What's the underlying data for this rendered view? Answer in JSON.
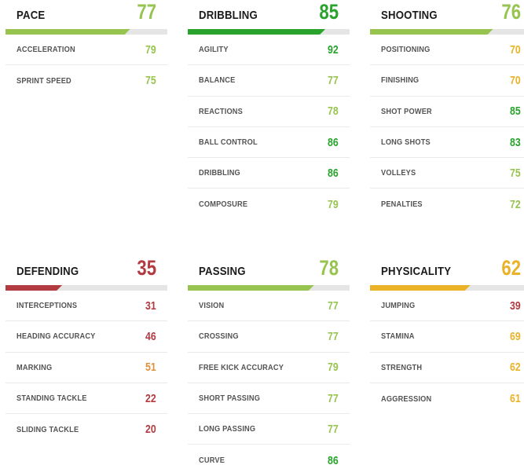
{
  "colors": {
    "green": "#29a32b",
    "light_green": "#96c44f",
    "gold": "#e9b227",
    "orange": "#df903b",
    "red": "#b23a41",
    "bar_track": "#e5e5e5"
  },
  "sections": [
    {
      "title": "PACE",
      "value": 77,
      "tier": "light_green",
      "stats": [
        {
          "label": "ACCELERATION",
          "value": 79,
          "tier": "light_green"
        },
        {
          "label": "SPRINT SPEED",
          "value": 75,
          "tier": "light_green"
        }
      ]
    },
    {
      "title": "DRIBBLING",
      "value": 85,
      "tier": "green",
      "stats": [
        {
          "label": "AGILITY",
          "value": 92,
          "tier": "green"
        },
        {
          "label": "BALANCE",
          "value": 77,
          "tier": "light_green"
        },
        {
          "label": "REACTIONS",
          "value": 78,
          "tier": "light_green"
        },
        {
          "label": "BALL CONTROL",
          "value": 86,
          "tier": "green"
        },
        {
          "label": "DRIBBLING",
          "value": 86,
          "tier": "green"
        },
        {
          "label": "COMPOSURE",
          "value": 79,
          "tier": "light_green"
        }
      ]
    },
    {
      "title": "SHOOTING",
      "value": 76,
      "tier": "light_green",
      "stats": [
        {
          "label": "POSITIONING",
          "value": 70,
          "tier": "gold"
        },
        {
          "label": "FINISHING",
          "value": 70,
          "tier": "gold"
        },
        {
          "label": "SHOT POWER",
          "value": 85,
          "tier": "green"
        },
        {
          "label": "LONG SHOTS",
          "value": 83,
          "tier": "green"
        },
        {
          "label": "VOLLEYS",
          "value": 75,
          "tier": "light_green"
        },
        {
          "label": "PENALTIES",
          "value": 72,
          "tier": "light_green"
        }
      ]
    },
    {
      "title": "DEFENDING",
      "value": 35,
      "tier": "red",
      "stats": [
        {
          "label": "INTERCEPTIONS",
          "value": 31,
          "tier": "red"
        },
        {
          "label": "HEADING ACCURACY",
          "value": 46,
          "tier": "red"
        },
        {
          "label": "MARKING",
          "value": 51,
          "tier": "orange"
        },
        {
          "label": "STANDING TACKLE",
          "value": 22,
          "tier": "red"
        },
        {
          "label": "SLIDING TACKLE",
          "value": 20,
          "tier": "red"
        }
      ]
    },
    {
      "title": "PASSING",
      "value": 78,
      "tier": "light_green",
      "stats": [
        {
          "label": "VISION",
          "value": 77,
          "tier": "light_green"
        },
        {
          "label": "CROSSING",
          "value": 77,
          "tier": "light_green"
        },
        {
          "label": "FREE KICK ACCURACY",
          "value": 79,
          "tier": "light_green"
        },
        {
          "label": "SHORT PASSING",
          "value": 77,
          "tier": "light_green"
        },
        {
          "label": "LONG PASSING",
          "value": 77,
          "tier": "light_green"
        },
        {
          "label": "CURVE",
          "value": 86,
          "tier": "green"
        }
      ]
    },
    {
      "title": "PHYSICALITY",
      "value": 62,
      "tier": "gold",
      "stats": [
        {
          "label": "JUMPING",
          "value": 39,
          "tier": "red"
        },
        {
          "label": "STAMINA",
          "value": 69,
          "tier": "gold"
        },
        {
          "label": "STRENGTH",
          "value": 62,
          "tier": "gold"
        },
        {
          "label": "AGGRESSION",
          "value": 61,
          "tier": "gold"
        }
      ]
    }
  ]
}
